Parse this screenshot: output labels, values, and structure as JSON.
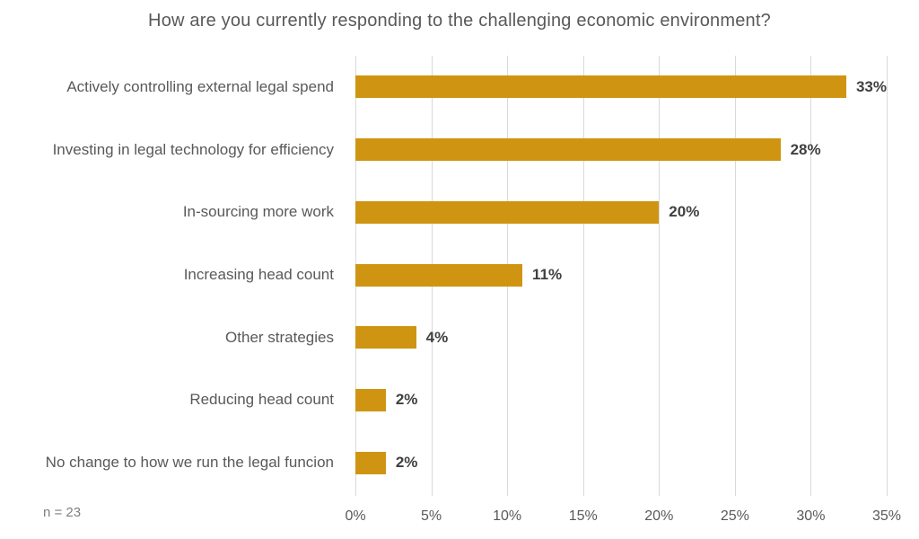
{
  "chart_data": {
    "type": "bar",
    "orientation": "horizontal",
    "title": "How are you currently responding to the challenging economic environment?",
    "categories": [
      "Actively controlling external legal spend",
      "Investing in legal technology for efficiency",
      "In-sourcing more work",
      "Increasing head count",
      "Other strategies",
      "Reducing head count",
      "No change to how we run the legal funcion"
    ],
    "values": [
      33,
      28,
      20,
      11,
      4,
      2,
      2
    ],
    "value_labels": [
      "33%",
      "28%",
      "20%",
      "11%",
      "4%",
      "2%",
      "2%"
    ],
    "x_ticks": [
      "0%",
      "5%",
      "10%",
      "15%",
      "20%",
      "25%",
      "30%",
      "35%"
    ],
    "xlim": [
      0,
      35
    ],
    "xlabel": "",
    "ylabel": "",
    "grid": "vertical",
    "legend": "none",
    "note": "n = 23",
    "bar_color": "#cf9512",
    "gridline_color": "#d9d9d9",
    "label_color": "#595959",
    "value_label_color": "#404040"
  }
}
